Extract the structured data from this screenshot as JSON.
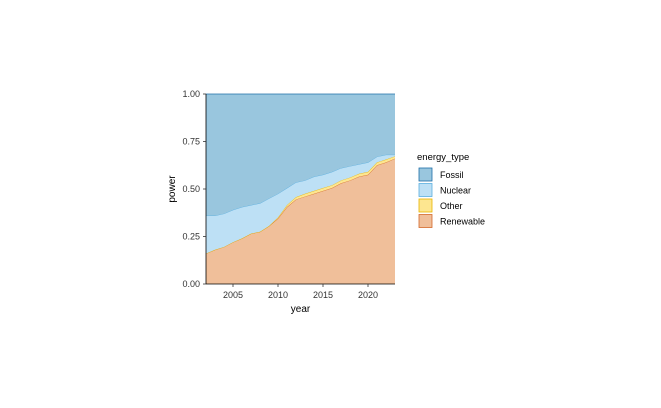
{
  "chart_data": {
    "type": "area",
    "stacked": true,
    "normalized": true,
    "xlabel": "year",
    "ylabel": "power",
    "xlim": [
      2002,
      2023
    ],
    "ylim": [
      0,
      1
    ],
    "x_ticks": [
      2005,
      2010,
      2015,
      2020
    ],
    "x_tick_labels": [
      "2005",
      "2010",
      "2015",
      "2020"
    ],
    "y_ticks": [
      0,
      0.25,
      0.5,
      0.75,
      1
    ],
    "y_tick_labels": [
      "0.00",
      "0.25",
      "0.50",
      "0.75",
      "1.00"
    ],
    "grid": false,
    "legend": {
      "title": "energy_type",
      "position": "right",
      "entries": [
        "Fossil",
        "Nuclear",
        "Other",
        "Renewable"
      ]
    },
    "x": [
      2002,
      2003,
      2004,
      2005,
      2006,
      2007,
      2008,
      2009,
      2010,
      2011,
      2012,
      2013,
      2014,
      2015,
      2016,
      2017,
      2018,
      2019,
      2020,
      2021,
      2022,
      2023
    ],
    "series": [
      {
        "name": "Renewable",
        "fill": "#f0bf9a",
        "stroke": "#d4692a",
        "values": [
          0.16,
          0.18,
          0.195,
          0.22,
          0.24,
          0.265,
          0.275,
          0.305,
          0.345,
          0.405,
          0.445,
          0.46,
          0.475,
          0.49,
          0.505,
          0.53,
          0.545,
          0.565,
          0.575,
          0.625,
          0.64,
          0.66
        ]
      },
      {
        "name": "Other",
        "fill": "#fde690",
        "stroke": "#e8b400",
        "values": [
          0.0,
          0.0,
          0.0,
          0.0,
          0.0,
          0.0,
          0.0,
          0.0,
          0.005,
          0.01,
          0.012,
          0.015,
          0.015,
          0.015,
          0.015,
          0.015,
          0.015,
          0.015,
          0.015,
          0.015,
          0.015,
          0.012
        ]
      },
      {
        "name": "Nuclear",
        "fill": "#bde0f5",
        "stroke": "#5aafe0",
        "values": [
          0.2,
          0.18,
          0.175,
          0.17,
          0.165,
          0.15,
          0.15,
          0.145,
          0.125,
          0.09,
          0.078,
          0.07,
          0.075,
          0.07,
          0.07,
          0.065,
          0.06,
          0.05,
          0.05,
          0.03,
          0.025,
          0.008
        ]
      },
      {
        "name": "Fossil",
        "fill": "#99c6de",
        "stroke": "#1f6fa8",
        "values": [
          0.64,
          0.64,
          0.63,
          0.61,
          0.595,
          0.585,
          0.575,
          0.55,
          0.525,
          0.495,
          0.465,
          0.455,
          0.435,
          0.425,
          0.41,
          0.39,
          0.38,
          0.37,
          0.36,
          0.33,
          0.32,
          0.32
        ]
      }
    ],
    "legend_colors": {
      "Fossil": {
        "fill": "#99c6de",
        "stroke": "#1f6fa8"
      },
      "Nuclear": {
        "fill": "#bde0f5",
        "stroke": "#5aafe0"
      },
      "Other": {
        "fill": "#fde690",
        "stroke": "#e8b400"
      },
      "Renewable": {
        "fill": "#f0bf9a",
        "stroke": "#d4692a"
      }
    },
    "axis_color": "#000000"
  }
}
